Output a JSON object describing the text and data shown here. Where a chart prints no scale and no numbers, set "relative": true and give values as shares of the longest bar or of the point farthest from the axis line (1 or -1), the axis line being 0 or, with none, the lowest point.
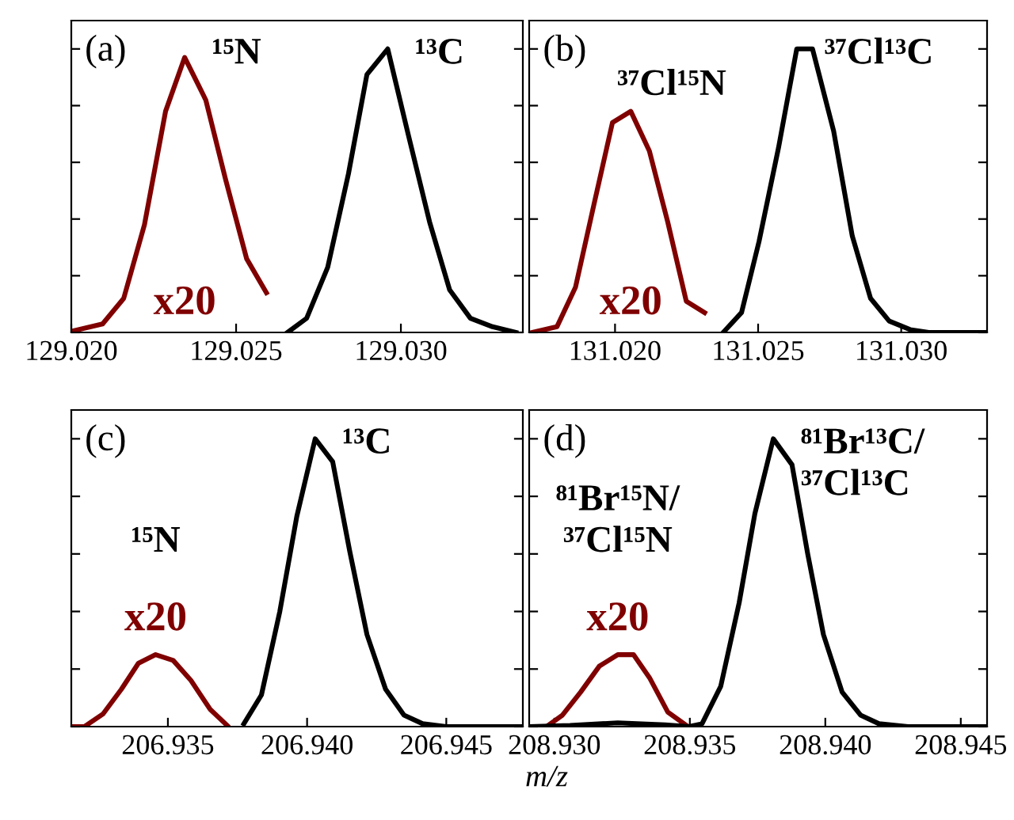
{
  "chart_data": [
    {
      "type": "line",
      "title": "(a)",
      "relative": true,
      "xlim": [
        129.02,
        129.0337
      ],
      "xticks": [
        {
          "value": 129.02,
          "label": "129.020"
        },
        129.025,
        {
          "value": 129.03,
          "label": "129.030"
        }
      ],
      "series": [
        {
          "color": "#800000",
          "x": [
            129.02,
            129.02095,
            129.02159,
            129.02222,
            129.02286,
            129.02344,
            129.02408,
            129.02468,
            129.02532,
            129.02592
          ],
          "values": [
            0.004,
            0.03,
            0.12,
            0.38,
            0.78,
            0.97,
            0.82,
            0.54,
            0.26,
            0.14
          ]
        },
        {
          "name": "¹³C",
          "color": "#000000",
          "x": [
            129.02656,
            129.02714,
            129.02778,
            129.02841,
            129.02897,
            129.0296,
            129.03024,
            129.03087,
            129.03148,
            129.03211,
            129.03278,
            129.03349
          ],
          "values": [
            0,
            0.05,
            0.23,
            0.56,
            0.91,
            1.0,
            0.69,
            0.39,
            0.15,
            0.05,
            0.02,
            0
          ]
        }
      ],
      "annotations": [
        "x20",
        {
          "text": "¹⁵N",
          "x": 129.02344,
          "y": 0.97
        }
      ]
    },
    {
      "type": "line",
      "title": "(b)",
      "relative": true,
      "xlim": [
        131.017,
        131.033
      ],
      "xticks": [
        {
          "value": 131.02,
          "label": "131.020"
        },
        131.025,
        {
          "value": 131.03,
          "label": "131.030"
        }
      ],
      "series": [
        {
          "color": "#800000",
          "x": [
            131.01711,
            131.01797,
            131.01862,
            131.01926,
            131.01991,
            131.02055,
            131.0212,
            131.02184,
            131.02249,
            131.02313
          ],
          "values": [
            0,
            0.02,
            0.16,
            0.45,
            0.74,
            0.78,
            0.64,
            0.39,
            0.11,
            0.07
          ]
        },
        {
          "name": "³⁷Cl¹³C",
          "color": "#000000",
          "x": [
            131.02378,
            131.02442,
            131.02503,
            131.02571,
            131.02635,
            131.0269,
            131.02764,
            131.02829,
            131.02893,
            131.02958,
            131.03031,
            131.03096,
            131.03298
          ],
          "values": [
            0,
            0.07,
            0.32,
            0.65,
            1.0,
            1.0,
            0.71,
            0.34,
            0.12,
            0.04,
            0.01,
            0,
            0
          ]
        }
      ],
      "annotations": [
        "x20",
        {
          "text": "³⁷Cl¹⁵N",
          "x": 131.02055,
          "y": 0.78
        }
      ]
    },
    {
      "type": "line",
      "title": "(c)",
      "relative": true,
      "xlim": [
        206.93153,
        206.94775
      ],
      "xticks": [
        206.935,
        {
          "value": 206.94,
          "label": "206.940"
        },
        206.945
      ],
      "series": [
        {
          "color": "#800000",
          "x": [
            206.93153,
            206.932,
            206.93267,
            206.93333,
            206.93394,
            206.93456,
            206.93519,
            206.93583,
            206.93652,
            206.93713
          ],
          "values": [
            0,
            0,
            0.044,
            0.13,
            0.22,
            0.25,
            0.23,
            0.16,
            0.06,
            0.004
          ]
        },
        {
          "name": "¹³C",
          "color": "#000000",
          "x": [
            206.93773,
            206.93836,
            206.93902,
            206.93963,
            206.94029,
            206.94092,
            206.94153,
            206.94215,
            206.94282,
            206.94348,
            206.94415,
            206.945,
            206.94775
          ],
          "values": [
            0.01,
            0.11,
            0.4,
            0.73,
            1.0,
            0.92,
            0.61,
            0.32,
            0.13,
            0.04,
            0.01,
            0,
            0
          ]
        }
      ],
      "annotations": [
        "x20",
        {
          "text": "¹⁵N",
          "x": 206.93456,
          "y": 0.25
        }
      ]
    },
    {
      "type": "line",
      "title": "(d)",
      "relative": true,
      "xlim": [
        208.92907,
        208.94597
      ],
      "xlabel": "m/z",
      "xticks": [
        {
          "value": 208.93,
          "label": "208.930"
        },
        208.935,
        {
          "value": 208.94,
          "label": "208.940"
        },
        208.945
      ],
      "series": [
        {
          "color": "#800000",
          "x": [
            208.92912,
            208.92971,
            208.9303,
            208.93097,
            208.93166,
            208.93234,
            208.93292,
            208.93351,
            208.93419,
            208.93487
          ],
          "values": [
            0,
            0,
            0.04,
            0.12,
            0.21,
            0.25,
            0.25,
            0.17,
            0.05,
            0.004
          ]
        },
        {
          "name": "⁸¹Br¹³C/\n³⁷Cl¹³C",
          "color": "#000000",
          "x": [
            208.92907,
            208.93058,
            208.93234,
            208.93409,
            208.93497,
            208.93545,
            208.93614,
            208.93682,
            208.9374,
            208.93808,
            208.93877,
            208.93935,
            208.93993,
            208.94062,
            208.9413,
            208.94198,
            208.94305,
            208.94597
          ],
          "values": [
            0,
            0.004,
            0.013,
            0.006,
            0,
            0.01,
            0.14,
            0.43,
            0.74,
            1.0,
            0.91,
            0.6,
            0.32,
            0.12,
            0.04,
            0.01,
            0,
            0
          ]
        }
      ],
      "annotations": [
        "x20",
        {
          "text": "⁸¹Br¹⁵N/\n³⁷Cl¹⁵N",
          "x": 208.93234,
          "y": 0.25
        }
      ]
    }
  ]
}
